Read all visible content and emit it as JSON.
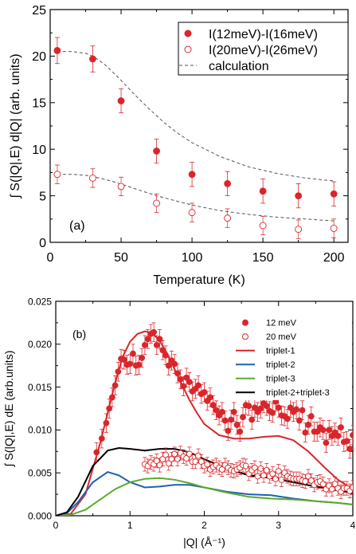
{
  "chart_data": [
    {
      "type": "scatter",
      "panel_label": "(a)",
      "xlabel": "Temperature (K)",
      "ylabel": "∫ S(|Q|,E) d|Q| (arb. units)",
      "xlim": [
        0,
        210
      ],
      "ylim": [
        0,
        25
      ],
      "x_ticks": [
        0,
        50,
        100,
        150,
        200
      ],
      "y_ticks": [
        0,
        5,
        10,
        15,
        20,
        25
      ],
      "legend_position": "top-right",
      "series": [
        {
          "name": "I(12meV)-I(16meV)",
          "marker": "filled-circle",
          "color": "#d9262b",
          "x": [
            5,
            30,
            50,
            75,
            100,
            125,
            150,
            175,
            200
          ],
          "y": [
            20.6,
            19.7,
            15.2,
            9.8,
            7.3,
            6.3,
            5.5,
            5.0,
            5.2
          ],
          "err": [
            1.4,
            1.4,
            1.3,
            1.3,
            1.3,
            1.3,
            1.3,
            1.3,
            1.3
          ]
        },
        {
          "name": "I(20meV)-I(26meV)",
          "marker": "open-circle",
          "color": "#d9262b",
          "x": [
            5,
            30,
            50,
            75,
            100,
            125,
            150,
            175,
            200
          ],
          "y": [
            7.3,
            6.9,
            6.0,
            4.2,
            3.2,
            2.6,
            1.8,
            1.4,
            1.5
          ],
          "err": [
            1.0,
            1.0,
            1.0,
            1.0,
            1.0,
            1.0,
            1.0,
            1.0,
            1.0
          ]
        },
        {
          "name": "calculation",
          "line": "dashed",
          "color": "#555555",
          "curves": [
            {
              "x": [
                5,
                15,
                25,
                30,
                35,
                40,
                50,
                60,
                70,
                80,
                90,
                100,
                120,
                140,
                160,
                180,
                200
              ],
              "y": [
                20.5,
                20.5,
                20.3,
                20.0,
                19.5,
                18.9,
                17.4,
                15.8,
                14.3,
                12.9,
                11.7,
                10.7,
                9.2,
                8.1,
                7.4,
                6.9,
                6.6
              ]
            },
            {
              "x": [
                5,
                15,
                25,
                35,
                45,
                55,
                65,
                75,
                85,
                100,
                120,
                140,
                160,
                180,
                200
              ],
              "y": [
                7.3,
                7.3,
                7.2,
                6.9,
                6.5,
                6.0,
                5.5,
                5.0,
                4.6,
                4.0,
                3.4,
                3.0,
                2.7,
                2.5,
                2.3
              ]
            }
          ]
        }
      ]
    },
    {
      "type": "line",
      "panel_label": "(b)",
      "xlabel": "|Q| (Å⁻¹)",
      "ylabel": "∫ S(|Q|,E) dE (arb.units)",
      "xlim": [
        0,
        4
      ],
      "ylim": [
        0,
        0.025
      ],
      "x_ticks": [
        0,
        1,
        2,
        3,
        4
      ],
      "y_ticks": [
        "0.000",
        "0.005",
        "0.010",
        "0.015",
        "0.020",
        "0.025"
      ],
      "legend_position": "top-right",
      "series": [
        {
          "name": "12 meV",
          "marker": "filled-circle",
          "color": "#d9262b",
          "x": [
            0.55,
            0.62,
            0.68,
            0.72,
            0.76,
            0.8,
            0.84,
            0.88,
            0.92,
            0.96,
            1.0,
            1.04,
            1.08,
            1.12,
            1.16,
            1.2,
            1.24,
            1.28,
            1.32,
            1.36,
            1.4,
            1.44,
            1.48,
            1.52,
            1.56,
            1.6,
            1.64,
            1.68,
            1.72,
            1.76,
            1.8,
            1.84,
            1.88,
            1.92,
            1.96,
            2.0,
            2.04,
            2.08,
            2.12,
            2.16,
            2.2,
            2.24,
            2.28,
            2.32,
            2.36,
            2.4,
            2.44,
            2.48,
            2.52,
            2.56,
            2.6,
            2.64,
            2.68,
            2.72,
            2.76,
            2.8,
            2.84,
            2.88,
            2.92,
            2.96,
            3.0,
            3.04,
            3.08,
            3.12,
            3.16,
            3.2,
            3.24,
            3.28,
            3.32,
            3.36,
            3.4,
            3.44,
            3.48,
            3.52,
            3.56,
            3.6,
            3.64,
            3.68,
            3.72,
            3.76,
            3.8,
            3.84,
            3.88,
            3.92,
            3.96,
            4.0
          ],
          "y": [
            0.0074,
            0.009,
            0.0108,
            0.0125,
            0.0138,
            0.0152,
            0.0168,
            0.0183,
            0.0182,
            0.0176,
            0.0177,
            0.0189,
            0.0175,
            0.0176,
            0.0184,
            0.0199,
            0.0206,
            0.0212,
            0.0214,
            0.0199,
            0.0206,
            0.0193,
            0.0187,
            0.0175,
            0.0181,
            0.0177,
            0.0166,
            0.0159,
            0.0151,
            0.0161,
            0.0156,
            0.0145,
            0.0148,
            0.0152,
            0.0142,
            0.0144,
            0.0134,
            0.0138,
            0.0129,
            0.0123,
            0.0117,
            0.0121,
            0.0111,
            0.0099,
            0.0112,
            0.0121,
            0.0106,
            0.0098,
            0.0115,
            0.0129,
            0.0128,
            0.0112,
            0.0126,
            0.0121,
            0.0125,
            0.0131,
            0.0128,
            0.0122,
            0.012,
            0.0133,
            0.0126,
            0.0117,
            0.0116,
            0.0113,
            0.0126,
            0.0121,
            0.0124,
            0.0111,
            0.0123,
            0.0097,
            0.0106,
            0.0116,
            0.0098,
            0.0098,
            0.0103,
            0.01,
            0.0085,
            0.01,
            0.0093,
            0.0097,
            0.0093,
            0.0103,
            0.0086,
            0.0087,
            0.0078,
            0.0094
          ],
          "err": 0.0011
        },
        {
          "name": "20 meV",
          "marker": "open-circle",
          "color": "#d9262b",
          "x": [
            1.2,
            1.24,
            1.28,
            1.32,
            1.36,
            1.4,
            1.44,
            1.48,
            1.52,
            1.56,
            1.6,
            1.64,
            1.68,
            1.72,
            1.76,
            1.8,
            1.84,
            1.88,
            1.92,
            1.96,
            2.0,
            2.04,
            2.08,
            2.12,
            2.16,
            2.2,
            2.24,
            2.28,
            2.32,
            2.36,
            2.4,
            2.44,
            2.48,
            2.52,
            2.56,
            2.6,
            2.64,
            2.68,
            2.72,
            2.76,
            2.8,
            2.84,
            2.88,
            2.92,
            2.96,
            3.0,
            3.04,
            3.08,
            3.12,
            3.16,
            3.2,
            3.24,
            3.28,
            3.32,
            3.36,
            3.4,
            3.44,
            3.48,
            3.52,
            3.56,
            3.6,
            3.64,
            3.68,
            3.72,
            3.76,
            3.8,
            3.84,
            3.88,
            3.92,
            3.96,
            4.0
          ],
          "y": [
            0.006,
            0.0058,
            0.0062,
            0.006,
            0.0064,
            0.0059,
            0.0066,
            0.0071,
            0.0061,
            0.0066,
            0.0072,
            0.0066,
            0.0073,
            0.0069,
            0.0067,
            0.0072,
            0.0063,
            0.0063,
            0.007,
            0.0063,
            0.0058,
            0.006,
            0.0054,
            0.0057,
            0.0059,
            0.0056,
            0.0054,
            0.0059,
            0.0056,
            0.0053,
            0.0052,
            0.0054,
            0.0056,
            0.0059,
            0.0058,
            0.0049,
            0.0053,
            0.0056,
            0.0046,
            0.0055,
            0.0047,
            0.0053,
            0.0046,
            0.0049,
            0.0043,
            0.0052,
            0.0042,
            0.005,
            0.0046,
            0.0044,
            0.0043,
            0.0043,
            0.0043,
            0.0041,
            0.004,
            0.0046,
            0.0041,
            0.0036,
            0.0039,
            0.004,
            0.0037,
            0.0031,
            0.0035,
            0.0031,
            0.0037,
            0.0032,
            0.0028,
            0.0032,
            0.0032,
            0.0029,
            0.0033
          ],
          "err": 0.0008
        },
        {
          "name": "triplet-1",
          "line": "solid",
          "color": "#d9262b",
          "x": [
            0,
            0.2,
            0.4,
            0.6,
            0.8,
            0.9,
            1.0,
            1.1,
            1.2,
            1.3,
            1.4,
            1.5,
            1.6,
            1.7,
            1.8,
            1.9,
            2.0,
            2.2,
            2.4,
            2.6,
            2.8,
            3.0,
            3.2,
            3.4,
            3.6,
            3.8,
            4.0
          ],
          "y": [
            0,
            0.0002,
            0.0025,
            0.0085,
            0.0155,
            0.0185,
            0.0203,
            0.0212,
            0.0215,
            0.0213,
            0.0204,
            0.0189,
            0.0171,
            0.0153,
            0.0135,
            0.012,
            0.0107,
            0.0094,
            0.009,
            0.009,
            0.0092,
            0.0093,
            0.0088,
            0.0075,
            0.0058,
            0.0042,
            0.0031
          ]
        },
        {
          "name": "triplet-2",
          "line": "solid",
          "color": "#1f5fb5",
          "x": [
            0,
            0.15,
            0.3,
            0.5,
            0.7,
            0.85,
            1.0,
            1.2,
            1.4,
            1.6,
            1.8,
            2.0,
            2.3,
            2.6,
            2.9,
            3.2,
            3.5,
            3.8,
            4.0
          ],
          "y": [
            0,
            0.0003,
            0.0016,
            0.0039,
            0.0051,
            0.0047,
            0.0039,
            0.0033,
            0.0034,
            0.0036,
            0.0036,
            0.0033,
            0.0028,
            0.0025,
            0.0024,
            0.002,
            0.0017,
            0.0015,
            0.0013
          ]
        },
        {
          "name": "triplet-3",
          "line": "solid",
          "color": "#5aaa2a",
          "x": [
            0,
            0.2,
            0.4,
            0.6,
            0.8,
            1.0,
            1.2,
            1.4,
            1.6,
            1.8,
            2.0,
            2.3,
            2.6,
            2.9,
            3.2,
            3.5,
            3.8,
            4.0
          ],
          "y": [
            0,
            0.0001,
            0.0007,
            0.0019,
            0.0031,
            0.0039,
            0.0043,
            0.0044,
            0.0042,
            0.0038,
            0.0033,
            0.0027,
            0.0022,
            0.002,
            0.0019,
            0.0017,
            0.0015,
            0.0013
          ]
        },
        {
          "name": "triplet-2+triplet-3",
          "line": "solid",
          "color": "#000000",
          "x": [
            0,
            0.15,
            0.3,
            0.5,
            0.7,
            0.85,
            1.0,
            1.2,
            1.4,
            1.6,
            1.8,
            2.0,
            2.3,
            2.6,
            2.9,
            3.2,
            3.5,
            3.8,
            4.0
          ],
          "y": [
            0,
            0.0004,
            0.0022,
            0.0058,
            0.0076,
            0.0079,
            0.0078,
            0.0076,
            0.0078,
            0.0078,
            0.0074,
            0.0066,
            0.0055,
            0.0047,
            0.0044,
            0.0039,
            0.0034,
            0.003,
            0.0026
          ]
        }
      ]
    }
  ]
}
